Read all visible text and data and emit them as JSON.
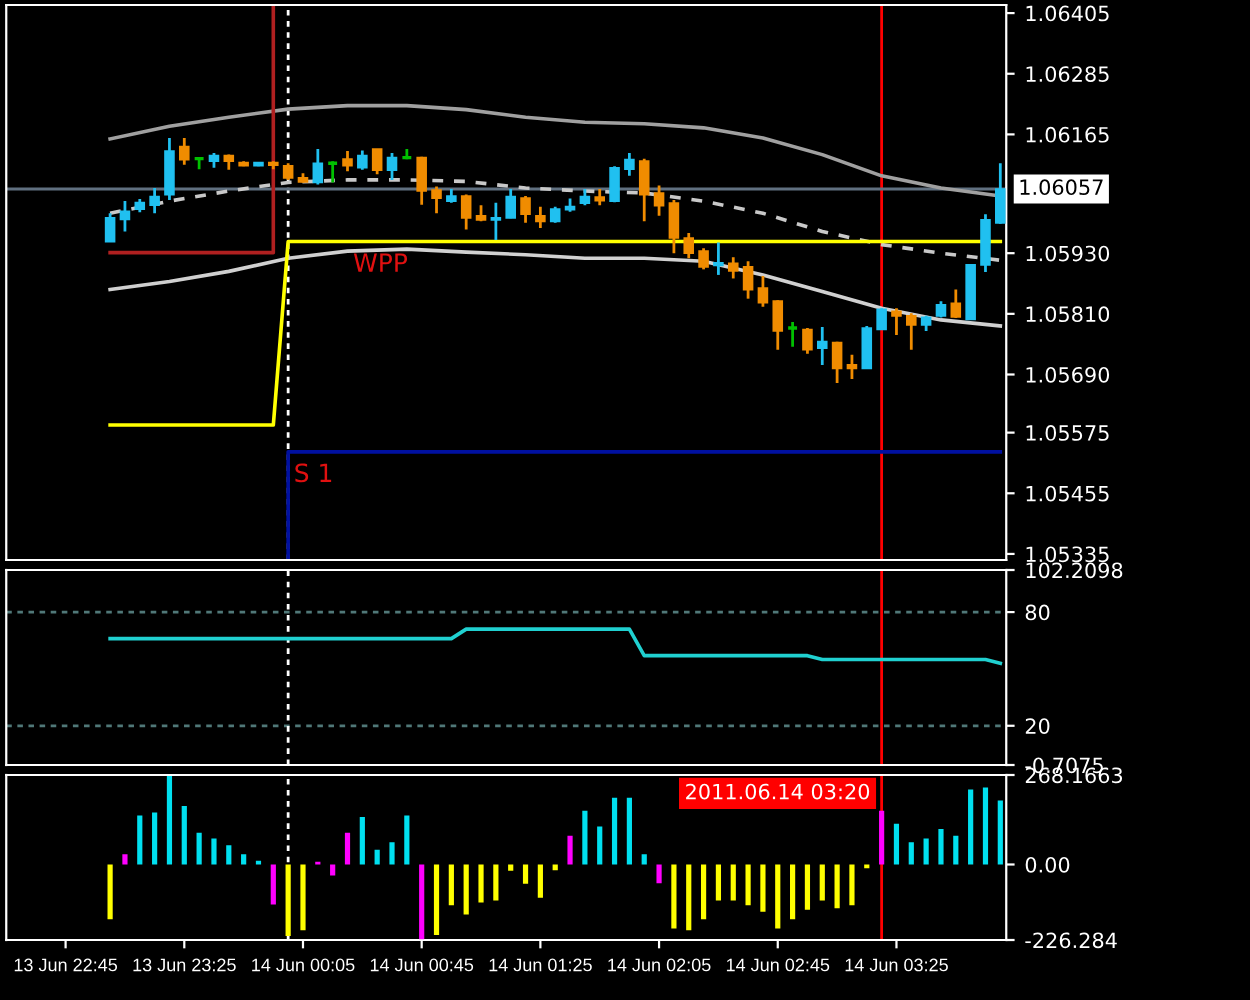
{
  "chart_data": [
    {
      "type": "candlestick",
      "x": [
        "2011-06-13T23:00",
        "2011-06-13T23:05",
        "2011-06-13T23:10",
        "2011-06-13T23:15",
        "2011-06-13T23:20",
        "2011-06-13T23:25",
        "2011-06-13T23:30",
        "2011-06-13T23:35",
        "2011-06-13T23:40",
        "2011-06-13T23:45",
        "2011-06-13T23:50",
        "2011-06-13T23:55",
        "2011-06-14T00:00",
        "2011-06-14T00:05",
        "2011-06-14T00:10",
        "2011-06-14T00:15",
        "2011-06-14T00:20",
        "2011-06-14T00:25",
        "2011-06-14T00:30",
        "2011-06-14T00:35",
        "2011-06-14T00:40",
        "2011-06-14T00:45",
        "2011-06-14T00:50",
        "2011-06-14T00:55",
        "2011-06-14T01:00",
        "2011-06-14T01:05",
        "2011-06-14T01:10",
        "2011-06-14T01:15",
        "2011-06-14T01:20",
        "2011-06-14T01:25",
        "2011-06-14T01:30",
        "2011-06-14T01:35",
        "2011-06-14T01:40",
        "2011-06-14T01:45",
        "2011-06-14T01:50",
        "2011-06-14T01:55",
        "2011-06-14T02:00",
        "2011-06-14T02:05",
        "2011-06-14T02:10",
        "2011-06-14T02:15",
        "2011-06-14T02:20",
        "2011-06-14T02:25",
        "2011-06-14T02:30",
        "2011-06-14T02:35",
        "2011-06-14T02:40",
        "2011-06-14T02:45",
        "2011-06-14T02:50",
        "2011-06-14T02:55",
        "2011-06-14T03:00",
        "2011-06-14T03:05",
        "2011-06-14T03:10",
        "2011-06-14T03:15",
        "2011-06-14T03:20",
        "2011-06-14T03:25",
        "2011-06-14T03:30",
        "2011-06-14T03:35",
        "2011-06-14T03:40",
        "2011-06-14T03:45",
        "2011-06-14T03:50",
        "2011-06-14T03:55",
        "2011-06-14T04:00"
      ],
      "ohlc": [
        [
          1.05953,
          1.06009,
          1.05953,
          1.06
        ],
        [
          1.05997,
          1.06033,
          1.05973,
          1.06013
        ],
        [
          1.06017,
          1.06037,
          1.06011,
          1.0603
        ],
        [
          1.06025,
          1.06059,
          1.06009,
          1.06042
        ],
        [
          1.06046,
          1.06158,
          1.06035,
          1.06132
        ],
        [
          1.06141,
          1.06158,
          1.06105,
          1.06115
        ],
        [
          1.06117,
          1.0612,
          1.06096,
          1.06117
        ],
        [
          1.06112,
          1.06128,
          1.06099,
          1.06123
        ],
        [
          1.06123,
          1.06125,
          1.06095,
          1.06112
        ],
        [
          1.06109,
          1.06112,
          1.06102,
          1.06103
        ],
        [
          1.06103,
          1.06109,
          1.06102,
          1.06109
        ],
        [
          1.06109,
          1.06112,
          1.06096,
          1.06104
        ],
        [
          1.06103,
          1.06108,
          1.06075,
          1.06079
        ],
        [
          1.06079,
          1.06088,
          1.0607,
          1.06071
        ],
        [
          1.0607,
          1.06136,
          1.06066,
          1.06108
        ],
        [
          1.06108,
          1.06112,
          1.0607,
          1.06108
        ],
        [
          1.06116,
          1.06132,
          1.06092,
          1.06103
        ],
        [
          1.06099,
          1.06133,
          1.06095,
          1.06123
        ],
        [
          1.06136,
          1.06136,
          1.06086,
          1.06094
        ],
        [
          1.06094,
          1.06128,
          1.06075,
          1.06119
        ],
        [
          1.06119,
          1.06136,
          1.06116,
          1.06119
        ],
        [
          1.06119,
          1.06121,
          1.06026,
          1.06053
        ],
        [
          1.06055,
          1.06062,
          1.06009,
          1.06039
        ],
        [
          1.06033,
          1.06057,
          1.0603,
          1.06043
        ],
        [
          1.06043,
          1.06046,
          1.05977,
          1.06
        ],
        [
          1.06004,
          1.06025,
          1.05993,
          1.05996
        ],
        [
          1.05996,
          1.0603,
          1.05956,
          1.06
        ],
        [
          1.06,
          1.06057,
          1.05999,
          1.06042
        ],
        [
          1.06039,
          1.06043,
          1.0599,
          1.06007
        ],
        [
          1.06004,
          1.06022,
          1.0598,
          1.05993
        ],
        [
          1.05993,
          1.06022,
          1.0599,
          1.06017
        ],
        [
          1.06016,
          1.06038,
          1.06012,
          1.06022
        ],
        [
          1.06029,
          1.06057,
          1.06025,
          1.06042
        ],
        [
          1.06041,
          1.06057,
          1.06025,
          1.06034
        ],
        [
          1.06033,
          1.06102,
          1.06031,
          1.06099
        ],
        [
          1.06096,
          1.06128,
          1.06083,
          1.06115
        ],
        [
          1.06112,
          1.06117,
          1.05993,
          1.06046
        ],
        [
          1.06049,
          1.06064,
          1.06004,
          1.06024
        ],
        [
          1.06029,
          1.06035,
          1.0593,
          1.0596
        ],
        [
          1.0596,
          1.0597,
          1.0592,
          1.0593
        ],
        [
          1.05934,
          1.0594,
          1.05898,
          1.05903
        ],
        [
          1.05906,
          1.05951,
          1.05887,
          1.05911
        ],
        [
          1.0591,
          1.05922,
          1.0588,
          1.05895
        ],
        [
          1.05903,
          1.05914,
          1.0584,
          1.05858
        ],
        [
          1.05861,
          1.05885,
          1.05824,
          1.05832
        ],
        [
          1.05835,
          1.05837,
          1.05739,
          1.05776
        ],
        [
          1.05782,
          1.05794,
          1.05745,
          1.05782
        ],
        [
          1.05779,
          1.05782,
          1.05731,
          1.05739
        ],
        [
          1.05742,
          1.05784,
          1.05709,
          1.05755
        ],
        [
          1.05753,
          1.05755,
          1.05673,
          1.05702
        ],
        [
          1.05709,
          1.05729,
          1.05681,
          1.05702
        ],
        [
          1.05702,
          1.05786,
          1.05702,
          1.05782
        ],
        [
          1.05779,
          1.05821,
          1.05779,
          1.05819
        ],
        [
          1.05815,
          1.05821,
          1.05768,
          1.05806
        ],
        [
          1.05806,
          1.05811,
          1.05739,
          1.05788
        ],
        [
          1.05788,
          1.05806,
          1.05776,
          1.05803
        ],
        [
          1.05806,
          1.05835,
          1.05803,
          1.05828
        ],
        [
          1.05831,
          1.05858,
          1.05802,
          1.05804
        ],
        [
          1.05799,
          1.05907,
          1.05799,
          1.05907
        ],
        [
          1.05907,
          1.06007,
          1.05893,
          1.05996
        ],
        [
          1.0599,
          1.06108,
          1.05988,
          1.06057
        ]
      ],
      "colors": [
        "#20c0f0",
        "#20c0f0",
        "#20c0f0",
        "#20c0f0",
        "#20c0f0",
        "#f08c00",
        "#00c000",
        "#20c0f0",
        "#f08c00",
        "#f08c00",
        "#20c0f0",
        "#f08c00",
        "#f08c00",
        "#f08c00",
        "#20c0f0",
        "#00c000",
        "#f08c00",
        "#20c0f0",
        "#f08c00",
        "#20c0f0",
        "#00c000",
        "#f08c00",
        "#f08c00",
        "#20c0f0",
        "#f08c00",
        "#f08c00",
        "#20c0f0",
        "#20c0f0",
        "#f08c00",
        "#f08c00",
        "#20c0f0",
        "#20c0f0",
        "#20c0f0",
        "#f08c00",
        "#20c0f0",
        "#20c0f0",
        "#f08c00",
        "#f08c00",
        "#f08c00",
        "#f08c00",
        "#f08c00",
        "#20c0f0",
        "#f08c00",
        "#f08c00",
        "#f08c00",
        "#f08c00",
        "#00c000",
        "#f08c00",
        "#20c0f0",
        "#f08c00",
        "#f08c00",
        "#20c0f0",
        "#20c0f0",
        "#f08c00",
        "#f08c00",
        "#20c0f0",
        "#20c0f0",
        "#f08c00",
        "#20c0f0",
        "#20c0f0",
        "#20c0f0"
      ],
      "series": [
        {
          "type": "line",
          "color": "#a0a0a0",
          "line_style": "solid",
          "x": [
            "2011-06-13T23:00",
            "2011-06-13T23:20",
            "2011-06-13T23:40",
            "2011-06-14T00:00",
            "2011-06-14T00:20",
            "2011-06-14T00:40",
            "2011-06-14T01:00",
            "2011-06-14T01:20",
            "2011-06-14T01:40",
            "2011-06-14T02:00",
            "2011-06-14T02:20",
            "2011-06-14T02:40",
            "2011-06-14T03:00",
            "2011-06-14T03:20",
            "2011-06-14T03:40",
            "2011-06-14T04:00"
          ],
          "values": [
            1.06156,
            1.06181,
            1.06199,
            1.06215,
            1.06222,
            1.06222,
            1.06214,
            1.06199,
            1.06189,
            1.06186,
            1.06178,
            1.06158,
            1.06125,
            1.06083,
            1.06059,
            1.06043
          ]
        },
        {
          "type": "line",
          "color": "#c8c8c8",
          "line_style": "dashed",
          "x": [
            "2011-06-13T23:00",
            "2011-06-13T23:20",
            "2011-06-13T23:40",
            "2011-06-14T00:00",
            "2011-06-14T00:20",
            "2011-06-14T00:40",
            "2011-06-14T01:00",
            "2011-06-14T01:20",
            "2011-06-14T01:40",
            "2011-06-14T02:00",
            "2011-06-14T02:20",
            "2011-06-14T02:40",
            "2011-06-14T03:00",
            "2011-06-14T03:20",
            "2011-06-14T03:40",
            "2011-06-14T04:00"
          ],
          "values": [
            1.06009,
            1.06033,
            1.06053,
            1.0607,
            1.06075,
            1.06075,
            1.06072,
            1.06059,
            1.06053,
            1.06049,
            1.06033,
            1.06009,
            1.05973,
            1.05947,
            1.0593,
            1.05916
          ]
        },
        {
          "type": "line",
          "color": "#d0d0d0",
          "line_style": "solid",
          "x": [
            "2011-06-13T23:00",
            "2011-06-13T23:20",
            "2011-06-13T23:40",
            "2011-06-14T00:00",
            "2011-06-14T00:20",
            "2011-06-14T00:40",
            "2011-06-14T01:00",
            "2011-06-14T01:20",
            "2011-06-14T01:40",
            "2011-06-14T02:00",
            "2011-06-14T02:20",
            "2011-06-14T02:40",
            "2011-06-14T03:00",
            "2011-06-14T03:20",
            "2011-06-14T03:40",
            "2011-06-14T04:00"
          ],
          "values": [
            1.05858,
            1.05874,
            1.05894,
            1.0592,
            1.05934,
            1.05938,
            1.05932,
            1.05927,
            1.0592,
            1.0592,
            1.05914,
            1.05887,
            1.05854,
            1.05821,
            1.05798,
            1.05786
          ]
        },
        {
          "type": "line",
          "color": "#ffff00",
          "line_style": "solid",
          "x": [
            "2011-06-13T23:00",
            "2011-06-13T23:55",
            "2011-06-14T00:00",
            "2011-06-14T04:00"
          ],
          "values": [
            1.0559,
            1.0559,
            1.05953,
            1.05953
          ]
        },
        {
          "type": "line",
          "color": "#b02020",
          "line_style": "solid",
          "x": [
            "2011-06-13T23:00",
            "2011-06-13T23:55",
            "2011-06-13T23:55"
          ],
          "values": [
            1.05931,
            1.05931,
            1.0642
          ]
        },
        {
          "type": "line",
          "color": "#0010a0",
          "line_style": "solid",
          "x": [
            "2011-06-14T00:00",
            "2011-06-14T00:00",
            "2011-06-14T04:00"
          ],
          "values": [
            1.05323,
            1.05537,
            1.05537
          ]
        }
      ],
      "xlim": [
        "2011-06-13T22:25",
        "2011-06-14T04:02"
      ],
      "ylim": [
        1.05323,
        1.06421
      ],
      "yticks": [
        1.06405,
        1.06285,
        1.06165,
        {
          "value": 1.0593,
          "label": "1.05930"
        },
        {
          "value": 1.0581,
          "label": "1.05810"
        },
        {
          "value": 1.0569,
          "label": "1.05690"
        },
        1.05575,
        1.05455,
        1.05335
      ],
      "tick_labels": "y",
      "ref_lines": [
        {
          "axis": "x",
          "value": "2011-06-14T00:00",
          "color": "#ffffff",
          "line_style": "dotted"
        },
        {
          "axis": "x",
          "value": "2011-06-14T03:20",
          "color": "#ff0000",
          "line_style": "solid"
        },
        {
          "axis": "y",
          "value": 1.06057,
          "label": "1.06057",
          "color": "#607080",
          "line_style": "solid"
        }
      ],
      "annotations": [
        {
          "text": "WPP",
          "x": "2011-06-14T00:20",
          "y": 1.05953
        },
        {
          "text": "S 1",
          "x": "2011-06-14T00:00",
          "y": 1.05537
        }
      ]
    },
    {
      "type": "line",
      "series": [
        {
          "color": "#20d0d0",
          "x": [
            "2011-06-13T23:00",
            "2011-06-14T00:55",
            "2011-06-14T01:00",
            "2011-06-14T01:55",
            "2011-06-14T02:00",
            "2011-06-14T02:55",
            "2011-06-14T03:00",
            "2011-06-14T03:55",
            "2011-06-14T04:00"
          ],
          "values": [
            66,
            66,
            71,
            71,
            57,
            57,
            55,
            55,
            53
          ]
        }
      ],
      "xlim": [
        "2011-06-13T22:25",
        "2011-06-14T04:02"
      ],
      "ylim": [
        -0.7075,
        102.2098
      ],
      "yticks": [
        102.2098,
        80,
        20,
        -0.7075
      ],
      "tick_labels": "y",
      "ref_lines": [
        {
          "axis": "y",
          "value": 80,
          "color": "#507878",
          "line_style": "dotted"
        },
        {
          "axis": "y",
          "value": 20,
          "color": "#507878",
          "line_style": "dotted"
        },
        {
          "axis": "x",
          "value": "2011-06-14T00:00",
          "color": "#ffffff",
          "line_style": "dotted"
        },
        {
          "axis": "x",
          "value": "2011-06-14T03:20",
          "color": "#ff0000",
          "line_style": "solid"
        }
      ]
    },
    {
      "type": "bar",
      "x": [
        "2011-06-13T23:00",
        "2011-06-13T23:05",
        "2011-06-13T23:10",
        "2011-06-13T23:15",
        "2011-06-13T23:20",
        "2011-06-13T23:25",
        "2011-06-13T23:30",
        "2011-06-13T23:35",
        "2011-06-13T23:40",
        "2011-06-13T23:45",
        "2011-06-13T23:50",
        "2011-06-13T23:55",
        "2011-06-14T00:00",
        "2011-06-14T00:05",
        "2011-06-14T00:10",
        "2011-06-14T00:15",
        "2011-06-14T00:20",
        "2011-06-14T00:25",
        "2011-06-14T00:30",
        "2011-06-14T00:35",
        "2011-06-14T00:40",
        "2011-06-14T00:45",
        "2011-06-14T00:50",
        "2011-06-14T00:55",
        "2011-06-14T01:00",
        "2011-06-14T01:05",
        "2011-06-14T01:10",
        "2011-06-14T01:15",
        "2011-06-14T01:20",
        "2011-06-14T01:25",
        "2011-06-14T01:30",
        "2011-06-14T01:35",
        "2011-06-14T01:40",
        "2011-06-14T01:45",
        "2011-06-14T01:50",
        "2011-06-14T01:55",
        "2011-06-14T02:00",
        "2011-06-14T02:05",
        "2011-06-14T02:10",
        "2011-06-14T02:15",
        "2011-06-14T02:20",
        "2011-06-14T02:25",
        "2011-06-14T02:30",
        "2011-06-14T02:35",
        "2011-06-14T02:40",
        "2011-06-14T02:45",
        "2011-06-14T02:50",
        "2011-06-14T02:55",
        "2011-06-14T03:00",
        "2011-06-14T03:05",
        "2011-06-14T03:10",
        "2011-06-14T03:15",
        "2011-06-14T03:20",
        "2011-06-14T03:25",
        "2011-06-14T03:30",
        "2011-06-14T03:35",
        "2011-06-14T03:40",
        "2011-06-14T03:45",
        "2011-06-14T03:50",
        "2011-06-14T03:55",
        "2011-06-14T04:00"
      ],
      "values": [
        -164,
        31,
        147,
        156,
        265,
        175,
        95,
        78,
        58,
        31,
        11,
        -120,
        -214,
        -197,
        8,
        -33,
        95,
        142,
        44,
        67,
        147,
        -224,
        -211,
        -122,
        -150,
        -114,
        -108,
        -19,
        -58,
        -100,
        -17,
        86,
        161,
        114,
        200,
        200,
        31,
        -56,
        -192,
        -197,
        -164,
        -108,
        -108,
        -122,
        -142,
        -192,
        -164,
        -136,
        -108,
        -131,
        -122,
        -11,
        161,
        122,
        67,
        78,
        106,
        86,
        225,
        231,
        192
      ],
      "colors": [
        "#ffff00",
        "#ff00ff",
        "#00e0f0",
        "#00e0f0",
        "#00e0f0",
        "#00e0f0",
        "#00e0f0",
        "#00e0f0",
        "#00e0f0",
        "#00e0f0",
        "#00e0f0",
        "#ff00ff",
        "#ffff00",
        "#ffff00",
        "#ff00ff",
        "#ff00ff",
        "#ff00ff",
        "#00e0f0",
        "#00e0f0",
        "#00e0f0",
        "#00e0f0",
        "#ff00ff",
        "#ffff00",
        "#ffff00",
        "#ffff00",
        "#ffff00",
        "#ffff00",
        "#ffff00",
        "#ffff00",
        "#ffff00",
        "#ffff00",
        "#ff00ff",
        "#00e0f0",
        "#00e0f0",
        "#00e0f0",
        "#00e0f0",
        "#00e0f0",
        "#ff00ff",
        "#ffff00",
        "#ffff00",
        "#ffff00",
        "#ffff00",
        "#ffff00",
        "#ffff00",
        "#ffff00",
        "#ffff00",
        "#ffff00",
        "#ffff00",
        "#ffff00",
        "#ffff00",
        "#ffff00",
        "#ffff00",
        "#ff00ff",
        "#00e0f0",
        "#00e0f0",
        "#00e0f0",
        "#00e0f0",
        "#00e0f0",
        "#00e0f0",
        "#00e0f0",
        "#00e0f0"
      ],
      "xlim": [
        "2011-06-13T22:25",
        "2011-06-14T04:02"
      ],
      "ylim": [
        -226.284,
        268.1663
      ],
      "yticks": [
        268.1663,
        {
          "value": 0,
          "label": "0.00"
        },
        -226.284
      ],
      "xticks": [
        {
          "value": "2011-06-13T22:45",
          "label": "13 Jun 22:45"
        },
        {
          "value": "2011-06-13T23:25",
          "label": "13 Jun 23:25"
        },
        {
          "value": "2011-06-14T00:05",
          "label": "14 Jun 00:05"
        },
        {
          "value": "2011-06-14T00:45",
          "label": "14 Jun 00:45"
        },
        {
          "value": "2011-06-14T01:25",
          "label": "14 Jun 01:25"
        },
        {
          "value": "2011-06-14T02:05",
          "label": "14 Jun 02:05"
        },
        {
          "value": "2011-06-14T02:45",
          "label": "14 Jun 02:45"
        },
        {
          "value": "2011-06-14T03:25",
          "label": "14 Jun 03:25"
        }
      ],
      "ref_lines": [
        {
          "axis": "x",
          "value": "2011-06-14T00:00",
          "color": "#ffffff",
          "line_style": "dotted"
        },
        {
          "axis": "x",
          "value": "2011-06-14T03:20",
          "label": "2011.06.14 03:20",
          "color": "#ff0000",
          "line_style": "solid"
        }
      ]
    }
  ]
}
